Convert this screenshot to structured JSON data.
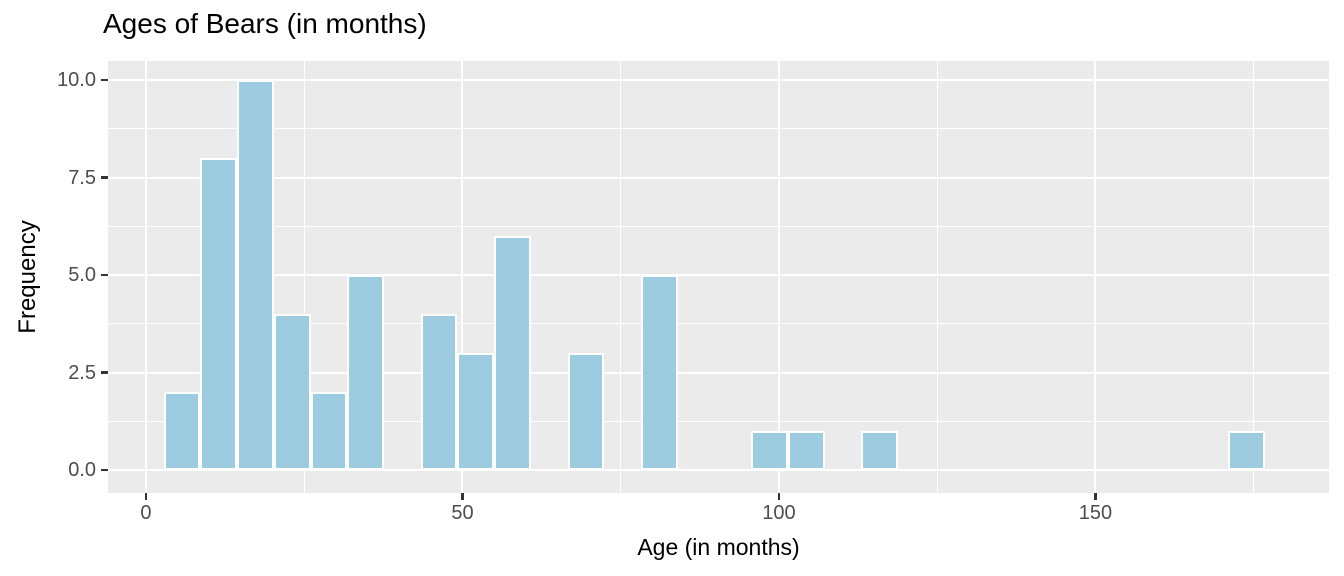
{
  "chart_data": {
    "type": "bar",
    "subtype": "histogram",
    "title": "Ages of Bears (in months)",
    "xlabel": "Age (in months)",
    "ylabel": "Frequency",
    "legend_position": "none",
    "grid": true,
    "bin_width": 5.8,
    "bins": [
      {
        "x0": 2.8,
        "x1": 8.6,
        "count": 2
      },
      {
        "x0": 8.6,
        "x1": 14.4,
        "count": 8
      },
      {
        "x0": 14.4,
        "x1": 20.2,
        "count": 10
      },
      {
        "x0": 20.2,
        "x1": 26.0,
        "count": 4
      },
      {
        "x0": 26.0,
        "x1": 31.8,
        "count": 2
      },
      {
        "x0": 31.8,
        "x1": 37.6,
        "count": 5
      },
      {
        "x0": 43.4,
        "x1": 49.2,
        "count": 4
      },
      {
        "x0": 49.2,
        "x1": 55.0,
        "count": 3
      },
      {
        "x0": 55.0,
        "x1": 60.8,
        "count": 6
      },
      {
        "x0": 66.6,
        "x1": 72.4,
        "count": 3
      },
      {
        "x0": 78.2,
        "x1": 84.0,
        "count": 5
      },
      {
        "x0": 95.6,
        "x1": 101.4,
        "count": 1
      },
      {
        "x0": 101.4,
        "x1": 107.2,
        "count": 1
      },
      {
        "x0": 113.0,
        "x1": 118.8,
        "count": 1
      },
      {
        "x0": 171.0,
        "x1": 176.8,
        "count": 1
      }
    ],
    "x_ticks": [
      {
        "value": 0,
        "label": "0"
      },
      {
        "value": 50,
        "label": "50"
      },
      {
        "value": 100,
        "label": "100"
      },
      {
        "value": 150,
        "label": "150"
      }
    ],
    "x_minor_ticks": [
      25,
      75,
      125,
      175
    ],
    "y_ticks": [
      {
        "value": 0,
        "label": "0.0"
      },
      {
        "value": 2.5,
        "label": "2.5"
      },
      {
        "value": 5,
        "label": "5.0"
      },
      {
        "value": 7.5,
        "label": "7.5"
      },
      {
        "value": 10,
        "label": "10.0"
      }
    ],
    "y_minor_ticks": [
      1.25,
      3.75,
      6.25,
      8.75
    ],
    "xlim": [
      -6.0,
      186.9
    ],
    "ylim": [
      -0.59,
      10.49
    ],
    "colors": {
      "bar_fill": "#9DCBDF",
      "bar_stroke": "#FFFFFF",
      "panel_bg": "#EBEBEB",
      "gridline": "#FFFFFF",
      "tick_mark": "#333333",
      "tick_label": "#4D4D4D",
      "title": "#000000",
      "axis_label": "#000000",
      "page_bg": "#FFFFFF"
    }
  }
}
